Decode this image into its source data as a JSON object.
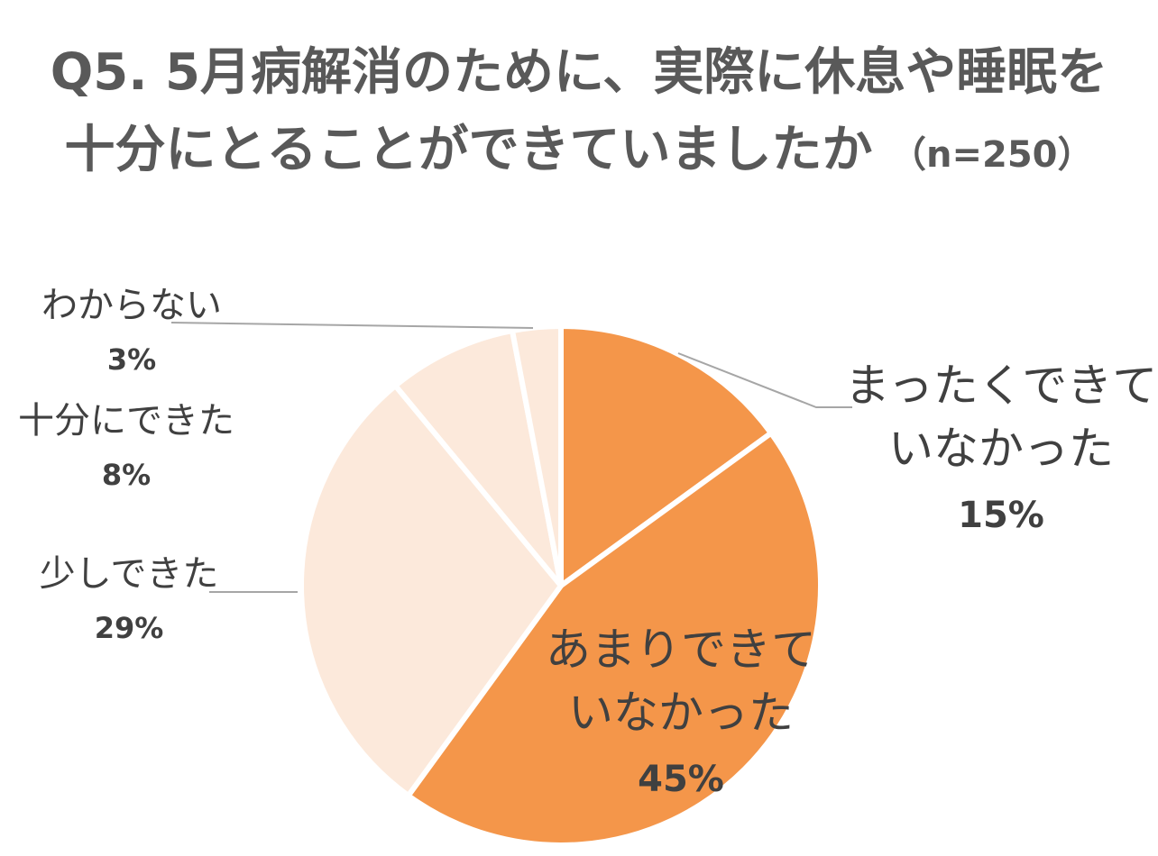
{
  "title": {
    "line1": "Q5. 5月病解消のために、実際に休息や睡眠を",
    "line2": "十分にとることができていましたか",
    "n": "（n=250）"
  },
  "chart_data": {
    "type": "pie",
    "title": "Q5. 5月病解消のために、実際に休息や睡眠を十分にとることができていましたか（n=250）",
    "slices": [
      {
        "label_lines": [
          "まったくできて",
          "いなかった"
        ],
        "value": 15,
        "pct_label": "15%",
        "color": "#F4964A"
      },
      {
        "label_lines": [
          "あまりできて",
          "いなかった"
        ],
        "value": 45,
        "pct_label": "45%",
        "color": "#F4964A"
      },
      {
        "label_lines": [
          "少しできた"
        ],
        "value": 29,
        "pct_label": "29%",
        "color": "#FCE9DB"
      },
      {
        "label_lines": [
          "十分にできた"
        ],
        "value": 8,
        "pct_label": "8%",
        "color": "#FCE9DB"
      },
      {
        "label_lines": [
          "わからない"
        ],
        "value": 3,
        "pct_label": "3%",
        "color": "#FCE9DB"
      }
    ],
    "start": "12 o'clock",
    "direction": "clockwise",
    "legend": "none"
  }
}
